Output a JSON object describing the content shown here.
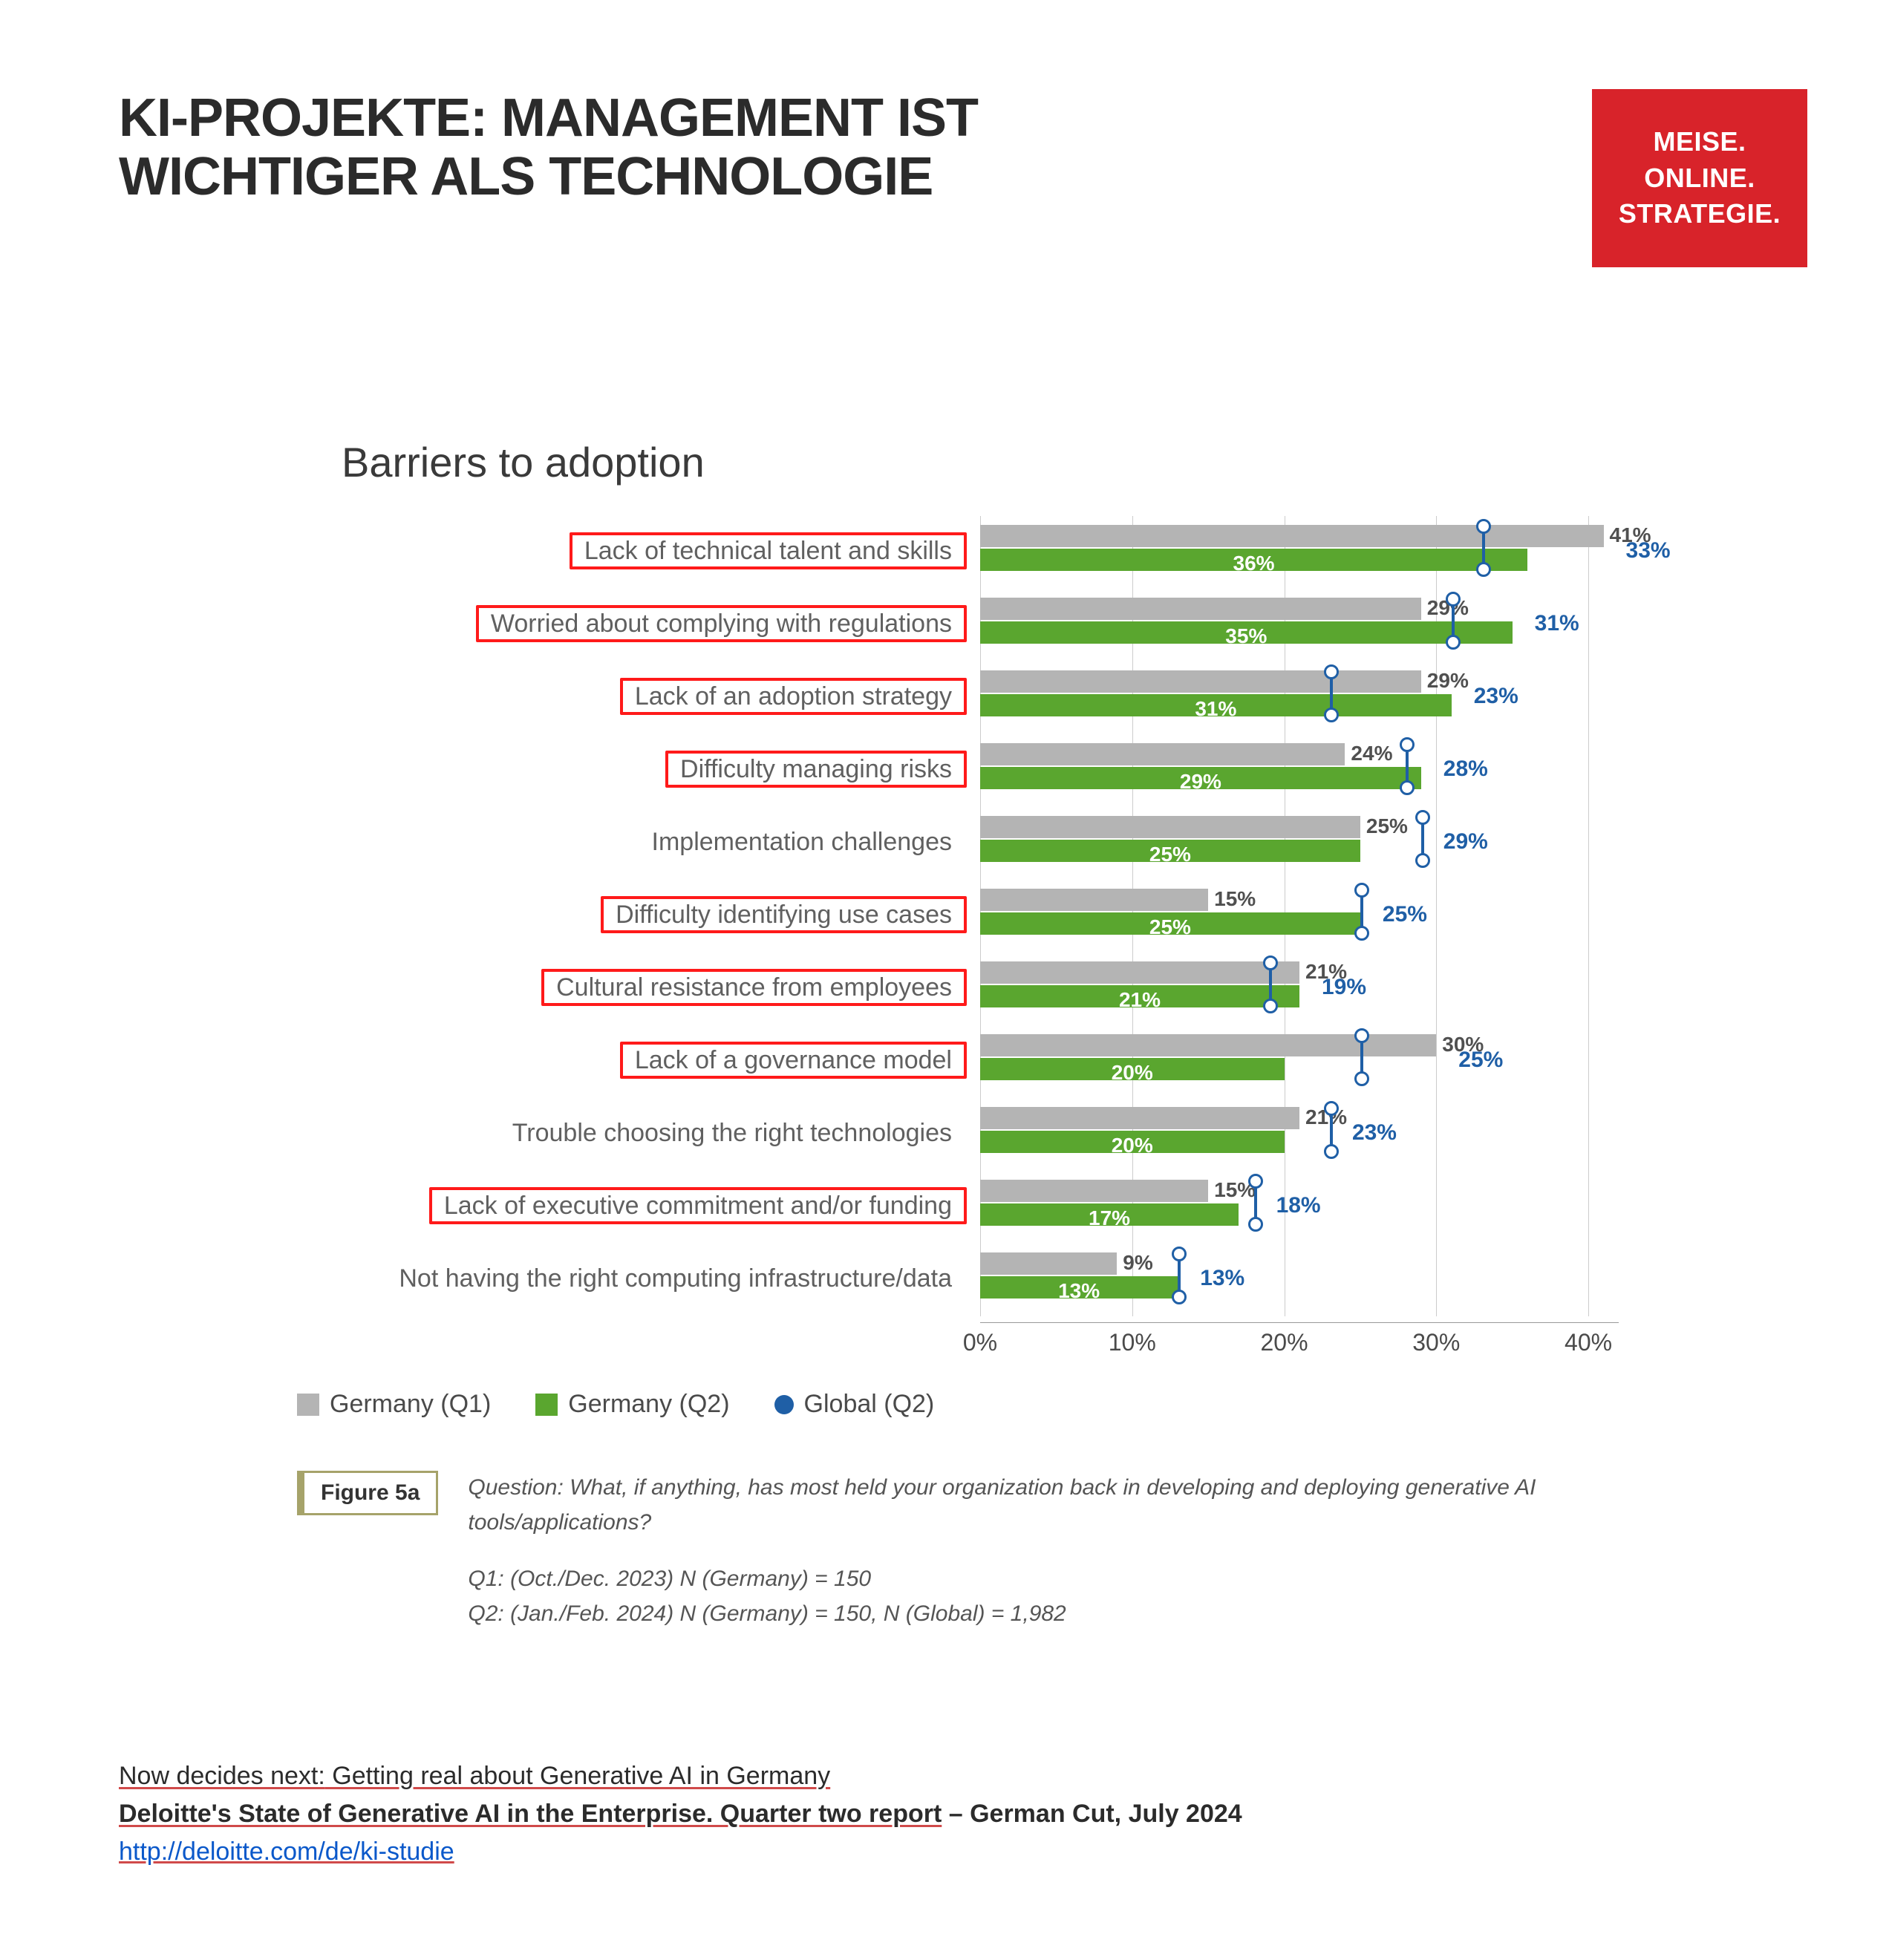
{
  "colors": {
    "brand_red": "#d8232a",
    "highlight_red": "#ff1a1a",
    "q1_grey": "#b4b4b4",
    "q2_green": "#5aa62f",
    "global_blue": "#1f5fa6",
    "text": "#2b2b2b",
    "grid": "#cccccc"
  },
  "header": {
    "title_line1": "KI-PROJEKTE: MANAGEMENT IST",
    "title_line2": "WICHTIGER ALS TECHNOLOGIE"
  },
  "brand": {
    "l1": "MEISE.",
    "l2": "ONLINE.",
    "l3": "STRATEGIE."
  },
  "chart": {
    "title": "Barriers to adoption",
    "x_max": 42,
    "x_ticks": [
      0,
      10,
      20,
      30,
      40
    ],
    "x_tick_labels": [
      "0%",
      "10%",
      "20%",
      "30%",
      "40%"
    ],
    "legend": {
      "q1": "Germany (Q1)",
      "q2": "Germany (Q2)",
      "global": "Global (Q2)"
    },
    "groups": [
      {
        "label": "Lack of technical talent and skills",
        "highlight": true,
        "q1": 41,
        "q2": 36,
        "global": 33
      },
      {
        "label": "Worried about complying with regulations",
        "highlight": true,
        "q1": 29,
        "q2": 35,
        "global": 31
      },
      {
        "label": "Lack of an adoption strategy",
        "highlight": true,
        "q1": 29,
        "q2": 31,
        "global": 23
      },
      {
        "label": "Difficulty managing risks",
        "highlight": true,
        "q1": 24,
        "q2": 29,
        "global": 28
      },
      {
        "label": "Implementation challenges",
        "highlight": false,
        "q1": 25,
        "q2": 25,
        "global": 29
      },
      {
        "label": "Difficulty identifying use cases",
        "highlight": true,
        "q1": 15,
        "q2": 25,
        "global": 25
      },
      {
        "label": "Cultural resistance from employees",
        "highlight": true,
        "q1": 21,
        "q2": 21,
        "global": 19
      },
      {
        "label": "Lack of a governance model",
        "highlight": true,
        "q1": 30,
        "q2": 20,
        "global": 25
      },
      {
        "label": "Trouble choosing the right technologies",
        "highlight": false,
        "q1": 21,
        "q2": 20,
        "global": 23
      },
      {
        "label": "Lack of executive commitment and/or funding",
        "highlight": true,
        "q1": 15,
        "q2": 17,
        "global": 18
      },
      {
        "label": "Not having the right computing infrastructure/data",
        "highlight": false,
        "q1": 9,
        "q2": 13,
        "global": 13
      }
    ]
  },
  "caption": {
    "figure": "Figure 5a",
    "question": "Question: What, if anything, has most held your organization back in developing and deploying generative AI tools/applications?",
    "n_line1": "Q1: (Oct./Dec. 2023) N (Germany) = 150",
    "n_line2": "Q2: (Jan./Feb. 2024) N (Germany) = 150, N (Global) = 1,982"
  },
  "footer": {
    "line1_a": "Now decides next:",
    "line1_b": " Getting real about Generative AI in Germany",
    "line2_a": "Deloitte's State of Generative AI in the Enterprise. Quarter two report",
    "line2_b": " – German Cut, July 2024",
    "link": "http://deloitte.com/de/ki-studie"
  }
}
